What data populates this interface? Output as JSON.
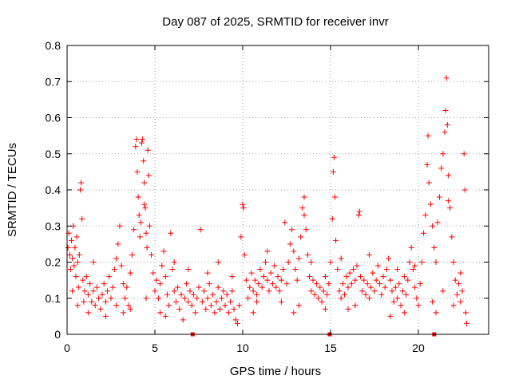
{
  "chart_data": {
    "type": "scatter",
    "title": "Day 087 of 2025, SRMTID for receiver invr",
    "xlabel": "GPS time / hours",
    "ylabel": "SRMTID / TECUs",
    "xlim": [
      0,
      24
    ],
    "ylim": [
      0,
      0.8
    ],
    "xticks": [
      0,
      5,
      10,
      15,
      20
    ],
    "xtick_labels": [
      "0",
      "5",
      "10",
      "15",
      "20"
    ],
    "yticks": [
      0,
      0.1,
      0.2,
      0.3,
      0.4,
      0.5,
      0.6,
      0.7,
      0.8
    ],
    "ytick_labels": [
      "0",
      "0.1",
      "0.2",
      "0.3",
      "0.4",
      "0.5",
      "0.6",
      "0.7",
      "0.8"
    ],
    "grid": true,
    "color": "#ff0000",
    "marker": "plus",
    "series": [
      {
        "name": "SRMTID",
        "points": [
          [
            0.05,
            0.24
          ],
          [
            0.1,
            0.28
          ],
          [
            0.15,
            0.22
          ],
          [
            0.2,
            0.18
          ],
          [
            0.25,
            0.26
          ],
          [
            0.3,
            0.21
          ],
          [
            0.35,
            0.3
          ],
          [
            0.4,
            0.19
          ],
          [
            0.45,
            0.24
          ],
          [
            0.5,
            0.16
          ],
          [
            0.55,
            0.27
          ],
          [
            0.6,
            0.2
          ],
          [
            0.65,
            0.13
          ],
          [
            0.7,
            0.22
          ],
          [
            0.75,
            0.4
          ],
          [
            0.8,
            0.42
          ],
          [
            0.85,
            0.32
          ],
          [
            0.9,
            0.15
          ],
          [
            0.95,
            0.09
          ],
          [
            1.0,
            0.12
          ],
          [
            1.1,
            0.16
          ],
          [
            1.2,
            0.11
          ],
          [
            1.3,
            0.14
          ],
          [
            1.4,
            0.09
          ],
          [
            1.5,
            0.12
          ],
          [
            1.6,
            0.08
          ],
          [
            1.7,
            0.13
          ],
          [
            1.8,
            0.1
          ],
          [
            1.9,
            0.07
          ],
          [
            2.0,
            0.11
          ],
          [
            2.1,
            0.14
          ],
          [
            2.2,
            0.09
          ],
          [
            2.3,
            0.12
          ],
          [
            2.4,
            0.16
          ],
          [
            2.5,
            0.1
          ],
          [
            2.6,
            0.13
          ],
          [
            2.7,
            0.18
          ],
          [
            2.8,
            0.21
          ],
          [
            2.9,
            0.25
          ],
          [
            3.0,
            0.3
          ],
          [
            3.1,
            0.19
          ],
          [
            3.2,
            0.14
          ],
          [
            3.3,
            0.1
          ],
          [
            3.4,
            0.13
          ],
          [
            3.5,
            0.08
          ],
          [
            3.6,
            0.17
          ],
          [
            3.7,
            0.22
          ],
          [
            3.8,
            0.29
          ],
          [
            3.9,
            0.52
          ],
          [
            3.95,
            0.54
          ],
          [
            4.0,
            0.45
          ],
          [
            4.05,
            0.38
          ],
          [
            4.1,
            0.33
          ],
          [
            4.15,
            0.27
          ],
          [
            4.2,
            0.31
          ],
          [
            4.25,
            0.53
          ],
          [
            4.3,
            0.54
          ],
          [
            4.35,
            0.48
          ],
          [
            4.4,
            0.42
          ],
          [
            4.45,
            0.35
          ],
          [
            4.5,
            0.28
          ],
          [
            4.55,
            0.24
          ],
          [
            4.6,
            0.51
          ],
          [
            4.65,
            0.44
          ],
          [
            4.7,
            0.3
          ],
          [
            4.8,
            0.22
          ],
          [
            4.9,
            0.17
          ],
          [
            5.0,
            0.12
          ],
          [
            5.1,
            0.15
          ],
          [
            5.2,
            0.1
          ],
          [
            5.3,
            0.14
          ],
          [
            5.4,
            0.19
          ],
          [
            5.5,
            0.23
          ],
          [
            5.6,
            0.16
          ],
          [
            5.7,
            0.11
          ],
          [
            5.8,
            0.08
          ],
          [
            5.9,
            0.28
          ],
          [
            6.0,
            0.18
          ],
          [
            6.1,
            0.12
          ],
          [
            6.2,
            0.09
          ],
          [
            6.3,
            0.13
          ],
          [
            6.4,
            0.07
          ],
          [
            6.5,
            0.11
          ],
          [
            6.6,
            0.04
          ],
          [
            6.7,
            0.1
          ],
          [
            6.8,
            0.14
          ],
          [
            6.9,
            0.09
          ],
          [
            7.0,
            0.12
          ],
          [
            7.1,
            0.08
          ],
          [
            7.2,
            0.11
          ],
          [
            7.3,
            0.06
          ],
          [
            7.4,
            0.1
          ],
          [
            7.5,
            0.13
          ],
          [
            7.6,
            0.29
          ],
          [
            7.7,
            0.09
          ],
          [
            7.8,
            0.12
          ],
          [
            7.9,
            0.07
          ],
          [
            8.0,
            0.1
          ],
          [
            8.1,
            0.14
          ],
          [
            8.2,
            0.08
          ],
          [
            8.3,
            0.11
          ],
          [
            8.4,
            0.06
          ],
          [
            8.5,
            0.09
          ],
          [
            8.6,
            0.13
          ],
          [
            8.7,
            0.07
          ],
          [
            8.8,
            0.1
          ],
          [
            8.9,
            0.12
          ],
          [
            9.0,
            0.08
          ],
          [
            9.1,
            0.11
          ],
          [
            9.2,
            0.06
          ],
          [
            9.3,
            0.09
          ],
          [
            9.4,
            0.12
          ],
          [
            9.5,
            0.07
          ],
          [
            9.6,
            0.04
          ],
          [
            9.7,
            0.03
          ],
          [
            9.8,
            0.08
          ],
          [
            9.9,
            0.27
          ],
          [
            10.0,
            0.36
          ],
          [
            10.05,
            0.35
          ],
          [
            10.1,
            0.22
          ],
          [
            10.2,
            0.15
          ],
          [
            10.3,
            0.1
          ],
          [
            10.4,
            0.13
          ],
          [
            10.5,
            0.17
          ],
          [
            10.6,
            0.12
          ],
          [
            10.7,
            0.15
          ],
          [
            10.8,
            0.11
          ],
          [
            10.9,
            0.14
          ],
          [
            11.0,
            0.18
          ],
          [
            11.1,
            0.13
          ],
          [
            11.2,
            0.16
          ],
          [
            11.3,
            0.2
          ],
          [
            11.4,
            0.15
          ],
          [
            11.5,
            0.12
          ],
          [
            11.6,
            0.17
          ],
          [
            11.7,
            0.14
          ],
          [
            11.8,
            0.19
          ],
          [
            11.9,
            0.13
          ],
          [
            12.0,
            0.16
          ],
          [
            12.1,
            0.12
          ],
          [
            12.2,
            0.15
          ],
          [
            12.3,
            0.18
          ],
          [
            12.4,
            0.31
          ],
          [
            12.5,
            0.14
          ],
          [
            12.6,
            0.2
          ],
          [
            12.7,
            0.25
          ],
          [
            12.8,
            0.29
          ],
          [
            12.9,
            0.23
          ],
          [
            13.0,
            0.18
          ],
          [
            13.1,
            0.15
          ],
          [
            13.2,
            0.21
          ],
          [
            13.3,
            0.27
          ],
          [
            13.4,
            0.35
          ],
          [
            13.5,
            0.38
          ],
          [
            13.6,
            0.29
          ],
          [
            13.7,
            0.22
          ],
          [
            13.8,
            0.16
          ],
          [
            13.9,
            0.12
          ],
          [
            14.0,
            0.15
          ],
          [
            14.1,
            0.11
          ],
          [
            14.2,
            0.14
          ],
          [
            14.3,
            0.1
          ],
          [
            14.4,
            0.13
          ],
          [
            14.5,
            0.09
          ],
          [
            14.6,
            0.12
          ],
          [
            14.7,
            0.16
          ],
          [
            14.8,
            0.11
          ],
          [
            14.9,
            0.14
          ],
          [
            15.0,
            0.2
          ],
          [
            15.1,
            0.32
          ],
          [
            15.15,
            0.45
          ],
          [
            15.2,
            0.49
          ],
          [
            15.25,
            0.38
          ],
          [
            15.3,
            0.26
          ],
          [
            15.4,
            0.18
          ],
          [
            15.5,
            0.12
          ],
          [
            15.6,
            0.1
          ],
          [
            15.7,
            0.14
          ],
          [
            15.8,
            0.11
          ],
          [
            15.9,
            0.16
          ],
          [
            16.0,
            0.13
          ],
          [
            16.1,
            0.17
          ],
          [
            16.2,
            0.14
          ],
          [
            16.3,
            0.18
          ],
          [
            16.4,
            0.15
          ],
          [
            16.5,
            0.19
          ],
          [
            16.6,
            0.33
          ],
          [
            16.65,
            0.34
          ],
          [
            16.7,
            0.16
          ],
          [
            16.8,
            0.12
          ],
          [
            16.9,
            0.15
          ],
          [
            17.0,
            0.11
          ],
          [
            17.1,
            0.14
          ],
          [
            17.2,
            0.1
          ],
          [
            17.3,
            0.13
          ],
          [
            17.4,
            0.17
          ],
          [
            17.5,
            0.12
          ],
          [
            17.6,
            0.15
          ],
          [
            17.7,
            0.19
          ],
          [
            17.8,
            0.14
          ],
          [
            17.9,
            0.11
          ],
          [
            18.0,
            0.16
          ],
          [
            18.1,
            0.13
          ],
          [
            18.2,
            0.18
          ],
          [
            18.3,
            0.21
          ],
          [
            18.4,
            0.15
          ],
          [
            18.5,
            0.12
          ],
          [
            18.6,
            0.09
          ],
          [
            18.7,
            0.13
          ],
          [
            18.8,
            0.1
          ],
          [
            18.9,
            0.14
          ],
          [
            19.0,
            0.08
          ],
          [
            19.1,
            0.12
          ],
          [
            19.2,
            0.16
          ],
          [
            19.3,
            0.11
          ],
          [
            19.4,
            0.15
          ],
          [
            19.5,
            0.2
          ],
          [
            19.6,
            0.24
          ],
          [
            19.7,
            0.18
          ],
          [
            19.8,
            0.13
          ],
          [
            19.9,
            0.1
          ],
          [
            20.0,
            0.08
          ],
          [
            20.1,
            0.14
          ],
          [
            20.2,
            0.2
          ],
          [
            20.3,
            0.28
          ],
          [
            20.4,
            0.33
          ],
          [
            20.5,
            0.47
          ],
          [
            20.55,
            0.55
          ],
          [
            20.6,
            0.42
          ],
          [
            20.7,
            0.36
          ],
          [
            20.8,
            0.3
          ],
          [
            20.9,
            0.24
          ],
          [
            21.0,
            0.2
          ],
          [
            21.1,
            0.31
          ],
          [
            21.2,
            0.38
          ],
          [
            21.3,
            0.46
          ],
          [
            21.4,
            0.5
          ],
          [
            21.5,
            0.56
          ],
          [
            21.55,
            0.62
          ],
          [
            21.6,
            0.71
          ],
          [
            21.65,
            0.58
          ],
          [
            21.7,
            0.44
          ],
          [
            21.8,
            0.35
          ],
          [
            21.9,
            0.27
          ],
          [
            22.0,
            0.2
          ],
          [
            22.1,
            0.15
          ],
          [
            22.2,
            0.11
          ],
          [
            22.3,
            0.14
          ],
          [
            22.4,
            0.09
          ],
          [
            22.5,
            0.12
          ],
          [
            22.6,
            0.5
          ],
          [
            22.65,
            0.4
          ],
          [
            22.7,
            0.06
          ],
          [
            22.75,
            0.03
          ],
          [
            0.3,
            0.12
          ],
          [
            0.6,
            0.08
          ],
          [
            1.5,
            0.2
          ],
          [
            2.2,
            0.05
          ],
          [
            3.2,
            0.06
          ],
          [
            3.6,
            0.07
          ],
          [
            4.5,
            0.1
          ],
          [
            5.3,
            0.06
          ],
          [
            6.1,
            0.2
          ],
          [
            6.9,
            0.18
          ],
          [
            8.6,
            0.2
          ],
          [
            9.4,
            0.16
          ],
          [
            10.6,
            0.06
          ],
          [
            11.4,
            0.23
          ],
          [
            12.2,
            0.09
          ],
          [
            12.9,
            0.06
          ],
          [
            13.9,
            0.2
          ],
          [
            14.7,
            0.07
          ],
          [
            15.6,
            0.21
          ],
          [
            16.4,
            0.08
          ],
          [
            17.2,
            0.22
          ],
          [
            18.4,
            0.05
          ],
          [
            19.2,
            0.06
          ],
          [
            19.8,
            0.19
          ],
          [
            20.8,
            0.09
          ],
          [
            21.4,
            0.12
          ],
          [
            22.0,
            0.08
          ],
          [
            22.4,
            0.17
          ],
          [
            1.2,
            0.06
          ],
          [
            2.8,
            0.08
          ],
          [
            5.6,
            0.05
          ],
          [
            8.0,
            0.17
          ],
          [
            10.8,
            0.09
          ],
          [
            13.2,
            0.08
          ],
          [
            16.0,
            0.07
          ],
          [
            18.8,
            0.18
          ],
          [
            21.0,
            0.06
          ],
          [
            4.4,
            0.36
          ],
          [
            13.5,
            0.33
          ],
          [
            21.7,
            0.37
          ]
        ]
      }
    ],
    "outliers": [
      [
        7.15,
        0.0
      ],
      [
        14.95,
        0.0
      ],
      [
        20.9,
        0.0
      ]
    ]
  }
}
